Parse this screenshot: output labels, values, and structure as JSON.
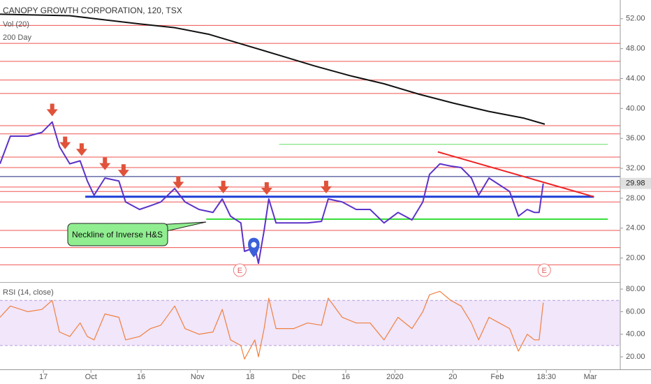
{
  "chart_data": [
    {
      "type": "line",
      "volume_label": "Vol (20)",
      "xlim": [
        0,
        120
      ],
      "xticks": [
        {
          "value": 8.4,
          "label": "17"
        },
        {
          "value": 17.6,
          "label": "Oct"
        },
        {
          "value": 27.3,
          "label": "16"
        },
        {
          "value": 38.2,
          "label": "Nov"
        },
        {
          "value": 48.4,
          "label": "18"
        },
        {
          "value": 57.8,
          "label": "Dec"
        },
        {
          "value": 66.9,
          "label": "16"
        },
        {
          "value": 76.4,
          "label": "2020"
        },
        {
          "value": 87.6,
          "label": "20"
        },
        {
          "value": 96.2,
          "label": "Feb"
        },
        {
          "value": 105.7,
          "label": "18:30"
        },
        {
          "value": 114.2,
          "label": "Mar"
        }
      ],
      "ylim": [
        16.7,
        54.5
      ],
      "yticks": [
        {
          "value": 20,
          "label": "20.00"
        },
        {
          "value": 24,
          "label": "24.00"
        },
        {
          "value": 28,
          "label": "28.00"
        },
        {
          "value": 32,
          "label": "32.00"
        },
        {
          "value": 36,
          "label": "36.00"
        },
        {
          "value": 40,
          "label": "40.00"
        },
        {
          "value": 44,
          "label": "44.00"
        },
        {
          "value": 48,
          "label": "48.00"
        },
        {
          "value": 52,
          "label": "52.00"
        }
      ],
      "series": [
        {
          "name": "CANOPY GROWTH CORPORATION, 120, TSX",
          "color": "#5c32c8",
          "x": [
            0,
            2,
            5.4,
            8.1,
            10.1,
            11.5,
            13.5,
            15.5,
            16.9,
            18.2,
            20.3,
            23,
            24.3,
            27,
            29.1,
            31.1,
            33.8,
            35.8,
            38.5,
            41.2,
            43,
            44.6,
            46.6,
            47.3,
            49.3,
            50,
            51.1,
            52,
            53.4,
            56.8,
            59.5,
            62.2,
            63.5,
            66.2,
            68.9,
            71.6,
            74.3,
            77,
            79.7,
            81.8,
            83.1,
            85.1,
            87.2,
            89.2,
            91.2,
            92.6,
            94.6,
            96.6,
            98.6,
            100.3,
            102,
            103.4,
            104.3,
            105.1
          ],
          "values": [
            32.6,
            36.3,
            36.3,
            36.8,
            38.2,
            34.9,
            32.6,
            33,
            30.3,
            28.4,
            30.7,
            30.3,
            27.5,
            26.5,
            27,
            27.5,
            29.3,
            27.5,
            26.5,
            26.1,
            27.9,
            25.6,
            24.7,
            20.9,
            21.4,
            19.3,
            23.7,
            27.9,
            24.7,
            24.7,
            24.7,
            24.9,
            27.9,
            27.5,
            26.5,
            26.5,
            24.7,
            26.1,
            25.1,
            27.5,
            31.2,
            32.6,
            32.3,
            32.1,
            30.7,
            28.4,
            30.7,
            29.8,
            28.9,
            25.6,
            26.5,
            26.1,
            26.1,
            29.98
          ]
        },
        {
          "name": "200 Day",
          "color": "#111111",
          "x": [
            0,
            13.5,
            27,
            33.8,
            40.5,
            47.3,
            54.1,
            60.8,
            67.6,
            74.3,
            81.1,
            87.8,
            94.6,
            101.4,
            105.4
          ],
          "values": [
            52.6,
            52.4,
            51.3,
            50.8,
            49.9,
            48.5,
            47.1,
            45.7,
            44.4,
            43.3,
            41.9,
            40.7,
            39.6,
            38.7,
            37.9
          ]
        }
      ],
      "last_price": {
        "value": 29.98,
        "label": "29.98"
      },
      "levels": [
        {
          "value": 51.1,
          "color": "#ef5350"
        },
        {
          "value": 48.7,
          "color": "#ef5350"
        },
        {
          "value": 46.3,
          "color": "#ef5350"
        },
        {
          "value": 43.8,
          "color": "#ef5350"
        },
        {
          "value": 42,
          "color": "#ef5350"
        },
        {
          "value": 37.7,
          "color": "#ef5350"
        },
        {
          "value": 36.6,
          "color": "#ef5350"
        },
        {
          "value": 33.5,
          "color": "#ef5350"
        },
        {
          "value": 32.1,
          "color": "#ef5350"
        },
        {
          "value": 29.5,
          "color": "#ef5350"
        },
        {
          "value": 28.9,
          "color": "#ef5350"
        },
        {
          "value": 27.5,
          "color": "#ef5350"
        },
        {
          "value": 23.7,
          "color": "#ef5350"
        },
        {
          "value": 21.4,
          "color": "#ef5350"
        },
        {
          "value": 19.1,
          "color": "#ef5350"
        },
        {
          "value": 30.9,
          "color": "#1a237e"
        }
      ],
      "segments": [
        {
          "x": [
            16.5,
            114.9
          ],
          "y": [
            28.2,
            28.2
          ],
          "color": "#1f3fd6",
          "width": 3
        },
        {
          "x": [
            54,
            117.6
          ],
          "y": [
            35.2,
            35.2
          ],
          "color": "#66dd66",
          "width": 1
        },
        {
          "x": [
            39.9,
            117.6
          ],
          "y": [
            25.2,
            25.2
          ],
          "color": "#33dd33",
          "width": 2
        },
        {
          "x": [
            84.7,
            114.9
          ],
          "y": [
            34.2,
            28.2
          ],
          "color": "#ee2222",
          "width": 2
        }
      ],
      "arrows": {
        "color": "#e0523a",
        "x": [
          10.1,
          12.6,
          15.8,
          20.3,
          23.9,
          34.5,
          43.2,
          51.6,
          63.1
        ],
        "values": [
          39.8,
          35.4,
          34.5,
          32.6,
          31.7,
          30.1,
          29.5,
          29.3,
          29.5
        ]
      },
      "pin": {
        "x": 49.1,
        "value": 21.4
      },
      "earnings": [
        {
          "x": 46.4,
          "label": "E"
        },
        {
          "x": 105.3,
          "label": "E"
        }
      ],
      "callout": "Neckline of Inverse H&S"
    },
    {
      "type": "line",
      "ylim": [
        8.3,
        85.6
      ],
      "yticks": [
        {
          "value": 20,
          "label": "20.00"
        },
        {
          "value": 40,
          "label": "40.00"
        },
        {
          "value": 60,
          "label": "60.00"
        },
        {
          "value": 80,
          "label": "80.00"
        }
      ],
      "band": [
        30,
        70
      ],
      "series": [
        {
          "name": "RSI (14, close)",
          "color": "#f08040",
          "x": [
            0,
            2,
            5.4,
            8.1,
            10.1,
            11.5,
            13.5,
            15.5,
            16.9,
            18.2,
            20.3,
            23,
            24.3,
            27,
            29.1,
            31.1,
            33.8,
            35.8,
            38.5,
            41.2,
            43,
            44.6,
            46.6,
            47.3,
            49.3,
            50,
            51.1,
            52,
            53.4,
            56.8,
            59.5,
            62.2,
            63.5,
            66.2,
            68.9,
            71.6,
            74.3,
            77,
            79.7,
            81.8,
            83.1,
            85.1,
            87.2,
            89.2,
            91.2,
            92.6,
            94.6,
            96.6,
            98.6,
            100.3,
            102,
            103.4,
            104.3,
            105.1
          ],
          "values": [
            55,
            65,
            60,
            62,
            70,
            42,
            38,
            50,
            38,
            35,
            58,
            55,
            35,
            38,
            45,
            48,
            65,
            45,
            40,
            42,
            62,
            35,
            30,
            18,
            35,
            20,
            45,
            72,
            45,
            45,
            50,
            48,
            72,
            55,
            50,
            50,
            35,
            55,
            45,
            60,
            75,
            78,
            70,
            65,
            50,
            35,
            55,
            50,
            45,
            25,
            40,
            35,
            35,
            68
          ]
        }
      ]
    }
  ]
}
